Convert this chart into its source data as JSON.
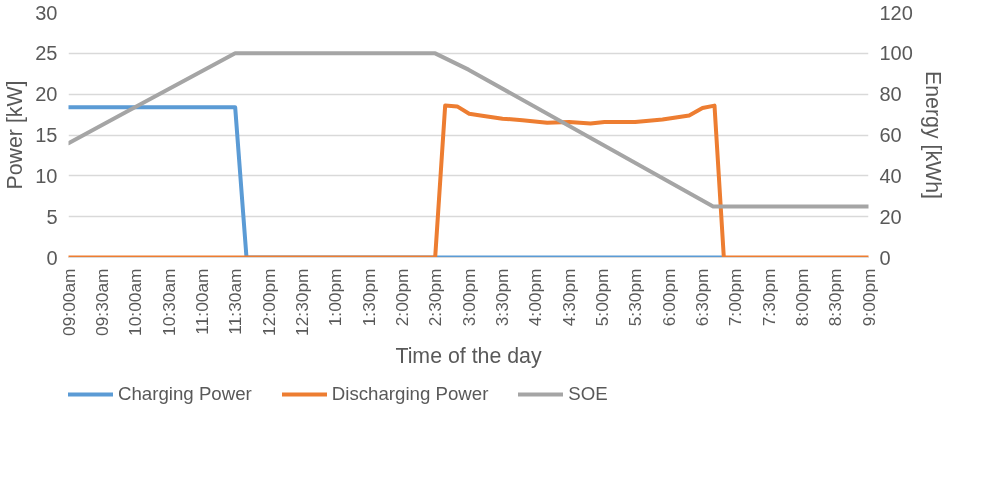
{
  "chart_data": {
    "type": "line",
    "xlabel": "Time of the day",
    "ylabel": "Power [kW]",
    "y2label": "Energy [kWh]",
    "xlim": [
      9,
      21
    ],
    "ylim": [
      0,
      30
    ],
    "yticks": [
      0,
      5,
      10,
      15,
      20,
      25,
      30
    ],
    "y2lim": [
      0,
      120
    ],
    "y2ticks": [
      0,
      20,
      40,
      60,
      80,
      100,
      120
    ],
    "xticks": [
      {
        "value": 9,
        "label": "09:00am"
      },
      {
        "value": 9.5,
        "label": "09:30am"
      },
      {
        "value": 10,
        "label": "10:00am"
      },
      {
        "value": 10.5,
        "label": "10:30am"
      },
      {
        "value": 11,
        "label": "11:00am"
      },
      {
        "value": 11.5,
        "label": "11:30am"
      },
      {
        "value": 12,
        "label": "12:00pm"
      },
      {
        "value": 12.5,
        "label": "12:30pm"
      },
      {
        "value": 13,
        "label": "1:00pm"
      },
      {
        "value": 13.5,
        "label": "1:30pm"
      },
      {
        "value": 14,
        "label": "2:00pm"
      },
      {
        "value": 14.5,
        "label": "2:30pm"
      },
      {
        "value": 15,
        "label": "3:00pm"
      },
      {
        "value": 15.5,
        "label": "3:30pm"
      },
      {
        "value": 16,
        "label": "4:00pm"
      },
      {
        "value": 16.5,
        "label": "4:30pm"
      },
      {
        "value": 17,
        "label": "5:00pm"
      },
      {
        "value": 17.5,
        "label": "5:30pm"
      },
      {
        "value": 18,
        "label": "6:00pm"
      },
      {
        "value": 18.5,
        "label": "6:30pm"
      },
      {
        "value": 19,
        "label": "7:00pm"
      },
      {
        "value": 19.5,
        "label": "7:30pm"
      },
      {
        "value": 20,
        "label": "8:00pm"
      },
      {
        "value": 20.5,
        "label": "8:30pm"
      },
      {
        "value": 21,
        "label": "9:00pm"
      }
    ],
    "grid": "y",
    "legend": "bottom",
    "series": [
      {
        "name": "Charging Power",
        "color": "#5b9bd5",
        "x": [
          9,
          10,
          11,
          11.5,
          11.67,
          14.5,
          18.83
        ],
        "values": [
          18.4,
          18.4,
          18.4,
          18.4,
          0,
          0,
          0
        ]
      },
      {
        "name": "Discharging Power",
        "color": "#ed7d31",
        "x": [
          9,
          14.5,
          14.65,
          14.83,
          15.01,
          15.18,
          15.51,
          15.81,
          16.18,
          16.51,
          16.83,
          17.04,
          17.5,
          17.91,
          18.31,
          18.51,
          18.69,
          18.83,
          21
        ],
        "values": [
          0,
          0,
          18.6,
          18.5,
          17.6,
          17.4,
          17.0,
          16.8,
          16.5,
          16.6,
          16.4,
          16.6,
          16.6,
          16.9,
          17.4,
          18.3,
          18.6,
          0,
          0
        ]
      },
      {
        "name": "SOE",
        "color": "#a5a5a5",
        "axis": "y2",
        "x": [
          9,
          9.85,
          11.5,
          14.5,
          15.0,
          18.67,
          21
        ],
        "values": [
          56,
          71,
          100,
          100,
          92,
          25,
          25
        ]
      }
    ]
  }
}
